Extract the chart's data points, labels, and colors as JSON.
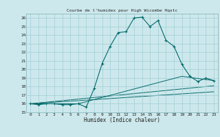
{
  "title": "Courbe de l'humidex pour High Wicombe Hqstc",
  "xlabel": "Humidex (Indice chaleur)",
  "background_color": "#cde8ec",
  "grid_color": "#9fcdd4",
  "line_color": "#006868",
  "ylim": [
    15,
    26.5
  ],
  "xlim": [
    -0.5,
    23.5
  ],
  "yticks": [
    15,
    16,
    17,
    18,
    19,
    20,
    21,
    22,
    23,
    24,
    25,
    26
  ],
  "xticks": [
    0,
    1,
    2,
    3,
    4,
    5,
    6,
    7,
    8,
    9,
    10,
    11,
    12,
    13,
    14,
    15,
    16,
    17,
    18,
    19,
    20,
    21,
    22,
    23
  ],
  "line1_x": [
    0,
    1,
    2,
    3,
    4,
    5,
    6,
    7,
    8,
    9,
    10,
    11,
    12,
    13,
    14,
    15,
    16,
    17,
    18,
    19,
    20,
    21,
    22,
    23
  ],
  "line1_y": [
    16.0,
    15.9,
    16.0,
    16.0,
    15.9,
    15.9,
    16.0,
    15.6,
    17.8,
    20.7,
    22.7,
    24.3,
    24.4,
    26.0,
    26.1,
    25.0,
    25.7,
    23.4,
    22.7,
    20.6,
    19.2,
    18.6,
    19.0,
    18.7
  ],
  "line2_x": [
    0,
    6,
    19,
    23
  ],
  "line2_y": [
    16.0,
    16.0,
    19.2,
    18.7
  ],
  "line3_x": [
    0,
    23
  ],
  "line3_y": [
    16.0,
    18.1
  ],
  "line4_x": [
    0,
    23
  ],
  "line4_y": [
    16.0,
    17.4
  ]
}
